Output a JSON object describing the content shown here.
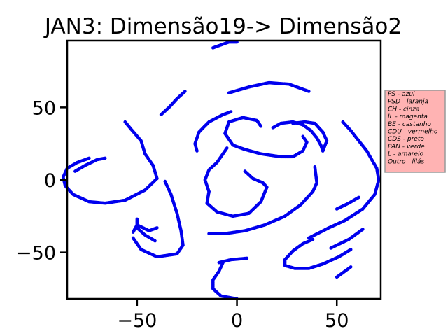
{
  "chart_data": {
    "type": "scatter",
    "title": "JAN3: Dimensão19-> Dimensão2",
    "xlabel": "",
    "ylabel": "",
    "xlim": [
      -85,
      72
    ],
    "ylim": [
      -82,
      96
    ],
    "xticks": [
      -50,
      0,
      50
    ],
    "yticks": [
      -50,
      0,
      50
    ],
    "xtick_labels": [
      "−50",
      "0",
      "50"
    ],
    "ytick_labels": [
      "−50",
      "0",
      "50"
    ],
    "grid": false,
    "marker_color": "#0000ee",
    "legend": {
      "placement": "right",
      "background": "#ffb3b3",
      "entries": [
        "PS - azul",
        "PSD - laranja",
        "CH - cinza",
        "IL - magenta",
        "BE - castanho",
        "CDU - vermelho",
        "CDS - preto",
        "PAN - verde",
        "L - amarelo",
        "Outro - lilás"
      ]
    },
    "series": [
      {
        "strands": [
          [
            [
              -12,
              91
            ],
            [
              -4,
              95
            ],
            [
              0,
              95
            ]
          ],
          [
            [
              -38,
              45
            ],
            [
              -34,
              50
            ],
            [
              -30,
              56
            ],
            [
              -26,
              61
            ]
          ],
          [
            [
              -4,
              60
            ],
            [
              6,
              64
            ],
            [
              16,
              67
            ],
            [
              26,
              66
            ],
            [
              36,
              61
            ]
          ],
          [
            [
              -74,
              15
            ],
            [
              -80,
              12
            ],
            [
              -85,
              8
            ],
            [
              -87,
              2
            ],
            [
              -86,
              -4
            ],
            [
              -82,
              -10
            ],
            [
              -74,
              -15
            ],
            [
              -66,
              -16
            ],
            [
              -56,
              -14
            ],
            [
              -46,
              -7
            ],
            [
              -40,
              1
            ],
            [
              -42,
              10
            ],
            [
              -46,
              18
            ],
            [
              -48,
              27
            ],
            [
              -53,
              35
            ],
            [
              -56,
              40
            ]
          ],
          [
            [
              -81,
              6
            ],
            [
              -76,
              10
            ],
            [
              -70,
              14
            ],
            [
              -66,
              15
            ]
          ],
          [
            [
              -20,
              20
            ],
            [
              -21,
              25
            ],
            [
              -19,
              33
            ],
            [
              -14,
              40
            ],
            [
              -7,
              45
            ],
            [
              -3,
              47
            ]
          ],
          [
            [
              -2,
              24
            ],
            [
              -6,
              32
            ],
            [
              -4,
              40
            ],
            [
              3,
              43
            ],
            [
              10,
              41
            ],
            [
              12,
              37
            ]
          ],
          [
            [
              -2,
              24
            ],
            [
              4,
              21
            ],
            [
              12,
              18
            ],
            [
              22,
              16
            ],
            [
              28,
              16
            ],
            [
              33,
              20
            ],
            [
              35,
              26
            ],
            [
              33,
              30
            ]
          ],
          [
            [
              18,
              36
            ],
            [
              22,
              39
            ],
            [
              28,
              40
            ],
            [
              33,
              38
            ],
            [
              37,
              34
            ]
          ],
          [
            [
              37,
              34
            ],
            [
              40,
              29
            ],
            [
              42,
              24
            ],
            [
              43,
              20
            ]
          ],
          [
            [
              43,
              20
            ],
            [
              45,
              27
            ],
            [
              43,
              33
            ],
            [
              39,
              39
            ],
            [
              34,
              40
            ],
            [
              28,
              39
            ]
          ],
          [
            [
              -41,
              -42
            ],
            [
              -46,
              -38
            ],
            [
              -50,
              -33
            ],
            [
              -50,
              -27
            ]
          ],
          [
            [
              -52,
              -40
            ],
            [
              -48,
              -48
            ],
            [
              -40,
              -53
            ],
            [
              -30,
              -51
            ],
            [
              -27,
              -45
            ],
            [
              -28,
              -35
            ],
            [
              -30,
              -23
            ],
            [
              -33,
              -10
            ],
            [
              -36,
              -1
            ]
          ],
          [
            [
              -40,
              -33
            ],
            [
              -44,
              -35
            ],
            [
              -50,
              -31
            ],
            [
              -52,
              -36
            ]
          ],
          [
            [
              -14,
              -8
            ],
            [
              -15,
              -16
            ],
            [
              -10,
              -22
            ],
            [
              -2,
              -25
            ],
            [
              6,
              -23
            ],
            [
              12,
              -15
            ],
            [
              15,
              -5
            ],
            [
              13,
              -2
            ],
            [
              8,
              1
            ],
            [
              4,
              6
            ]
          ],
          [
            [
              -10,
              12
            ],
            [
              -14,
              7
            ],
            [
              -16,
              0
            ],
            [
              -14,
              -8
            ]
          ],
          [
            [
              -10,
              12
            ],
            [
              -7,
              18
            ],
            [
              -5,
              22
            ]
          ],
          [
            [
              -14,
              -37
            ],
            [
              -6,
              -37
            ],
            [
              4,
              -35
            ],
            [
              14,
              -31
            ],
            [
              24,
              -25
            ],
            [
              32,
              -17
            ],
            [
              38,
              -8
            ],
            [
              40,
              -2
            ],
            [
              39,
              9
            ]
          ],
          [
            [
              -7,
              -57
            ],
            [
              -9,
              -63
            ],
            [
              -12,
              -69
            ],
            [
              -12,
              -75
            ],
            [
              -8,
              -80
            ],
            [
              0,
              -82
            ]
          ],
          [
            [
              -9,
              -57
            ],
            [
              -3,
              -55
            ],
            [
              5,
              -54
            ]
          ],
          [
            [
              57,
              -48
            ],
            [
              51,
              -53
            ],
            [
              43,
              -58
            ],
            [
              36,
              -61
            ],
            [
              29,
              -61
            ],
            [
              24,
              -59
            ],
            [
              24,
              -55
            ],
            [
              28,
              -49
            ],
            [
              33,
              -44
            ],
            [
              38,
              -41
            ]
          ],
          [
            [
              36,
              -40
            ],
            [
              46,
              -33
            ],
            [
              54,
              -28
            ],
            [
              63,
              -20
            ],
            [
              69,
              -10
            ],
            [
              71,
              0
            ],
            [
              70,
              8
            ],
            [
              65,
              20
            ],
            [
              57,
              34
            ],
            [
              53,
              40
            ]
          ],
          [
            [
              50,
              -20
            ],
            [
              56,
              -16
            ],
            [
              61,
              -12
            ]
          ],
          [
            [
              47,
              -47
            ],
            [
              56,
              -41
            ],
            [
              63,
              -34
            ]
          ],
          [
            [
              57,
              -60
            ],
            [
              50,
              -67
            ]
          ]
        ]
      }
    ]
  }
}
